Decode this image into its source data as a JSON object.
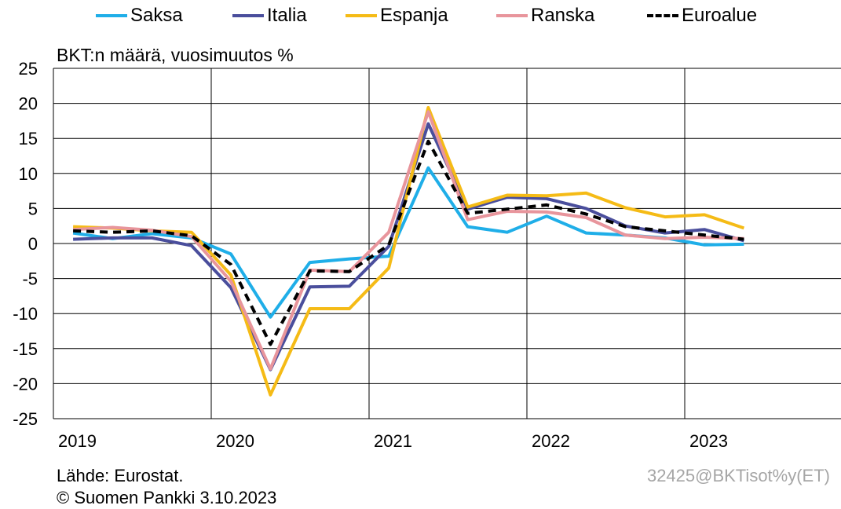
{
  "chart_data": {
    "type": "line",
    "ylabel": "BKT:n määrä, vuosimuutos %",
    "ylim": [
      -25,
      25
    ],
    "yticks": [
      25,
      20,
      15,
      10,
      5,
      0,
      -5,
      -10,
      -15,
      -20,
      -25
    ],
    "year_labels": [
      "2019",
      "2020",
      "2021",
      "2022",
      "2023"
    ],
    "x": [
      "2019Q1",
      "2019Q2",
      "2019Q3",
      "2019Q4",
      "2020Q1",
      "2020Q2",
      "2020Q3",
      "2020Q4",
      "2021Q1",
      "2021Q2",
      "2021Q3",
      "2021Q4",
      "2022Q1",
      "2022Q2",
      "2022Q3",
      "2022Q4",
      "2023Q1",
      "2023Q2"
    ],
    "grid": true,
    "legend_position": "top",
    "series": [
      {
        "name": "Saksa",
        "color": "#1FAEE8",
        "dash": false,
        "values": [
          1.5,
          0.7,
          1.4,
          0.8,
          -1.5,
          -10.5,
          -2.7,
          -2.2,
          -1.8,
          10.8,
          2.4,
          1.6,
          3.9,
          1.5,
          1.2,
          0.8,
          -0.2,
          -0.1
        ]
      },
      {
        "name": "Italia",
        "color": "#4A4E9C",
        "dash": false,
        "values": [
          0.6,
          0.8,
          0.8,
          -0.3,
          -6.3,
          -18.0,
          -6.2,
          -6.1,
          -0.4,
          17.1,
          4.9,
          6.6,
          6.4,
          5.0,
          2.5,
          1.5,
          2.0,
          0.4
        ]
      },
      {
        "name": "Espanja",
        "color": "#F5BB16",
        "dash": false,
        "values": [
          2.4,
          2.2,
          1.8,
          1.6,
          -4.5,
          -21.6,
          -9.3,
          -9.3,
          -3.5,
          19.4,
          5.2,
          6.9,
          6.8,
          7.2,
          5.1,
          3.8,
          4.1,
          2.2
        ]
      },
      {
        "name": "Ranska",
        "color": "#E8959C",
        "dash": false,
        "values": [
          2.0,
          2.3,
          1.9,
          1.0,
          -5.4,
          -17.9,
          -3.8,
          -4.0,
          1.6,
          18.8,
          3.4,
          4.6,
          4.5,
          3.7,
          1.2,
          0.7,
          0.9,
          0.7
        ]
      },
      {
        "name": "Euroalue",
        "color": "#000000",
        "dash": true,
        "values": [
          1.8,
          1.6,
          1.8,
          1.1,
          -3.0,
          -14.4,
          -3.9,
          -4.0,
          -0.2,
          14.6,
          4.3,
          4.9,
          5.5,
          4.2,
          2.4,
          1.8,
          1.2,
          0.6
        ]
      }
    ]
  },
  "footer": {
    "source": "Lähde: Eurostat.",
    "copyright": "© Suomen Pankki 3.10.2023",
    "code": "32425@BKTisot%y(ET)"
  }
}
